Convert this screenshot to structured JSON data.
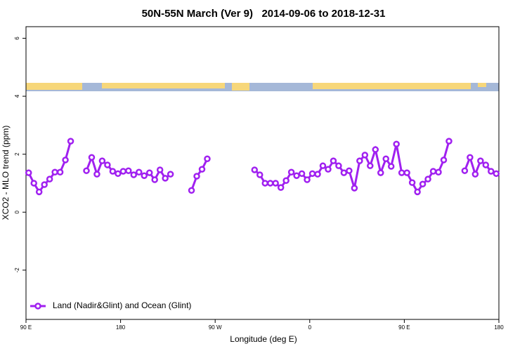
{
  "chart_data": {
    "type": "line",
    "title": "50N-55N March (Ver 9)   2014-09-06 to 2018-12-31",
    "xlabel": "Longitude (deg E)",
    "ylabel": "XCO2 - MLO trend (ppm)",
    "xlim": [
      90,
      540
    ],
    "ylim": [
      -3.7,
      6.4
    ],
    "xticks": [
      {
        "value": 90,
        "label": "90 E"
      },
      180,
      {
        "value": 270,
        "label": "90 W"
      },
      {
        "value": 360,
        "label": "0"
      },
      {
        "value": 450,
        "label": "90 E"
      },
      {
        "value": 540,
        "label": "180"
      }
    ],
    "yticks": [
      -2,
      0,
      2,
      4,
      6
    ],
    "legend": "bottomleft",
    "x": [
      92.5,
      97.5,
      102.5,
      107.5,
      112.5,
      117.5,
      122.5,
      127.5,
      132.5,
      137.5,
      147.5,
      152.5,
      157.5,
      162.5,
      167.5,
      172.5,
      177.5,
      182.5,
      187.5,
      192.5,
      197.5,
      202.5,
      207.5,
      212.5,
      217.5,
      222.5,
      227.5,
      232.5,
      247.5,
      252.5,
      257.5,
      262.5,
      267.5,
      307.5,
      312.5,
      317.5,
      322.5,
      327.5,
      332.5,
      337.5,
      342.5,
      347.5,
      352.5,
      357.5,
      362.5,
      367.5,
      372.5,
      377.5,
      382.5,
      387.5,
      392.5,
      397.5,
      402.5,
      407.5,
      412.5,
      417.5,
      422.5,
      427.5,
      432.5,
      437.5,
      442.5,
      447.5,
      452.5,
      457.5,
      462.5,
      467.5,
      472.5,
      477.5,
      482.5,
      487.5,
      492.5,
      497.5,
      507.5,
      512.5,
      517.5,
      522.5,
      527.5,
      532.5,
      537.5
    ],
    "series": [
      {
        "name": "Land (Nadir&Glint) and Ocean (Glint)",
        "color": "#a020f0",
        "values": [
          1.36,
          1.0,
          0.7,
          0.95,
          1.14,
          1.38,
          1.38,
          1.8,
          2.45,
          null,
          1.43,
          1.89,
          1.31,
          1.77,
          1.63,
          1.41,
          1.33,
          1.41,
          1.43,
          1.29,
          1.38,
          1.26,
          1.36,
          1.12,
          1.46,
          1.17,
          1.31,
          null,
          0.75,
          1.24,
          1.48,
          1.84,
          null,
          1.46,
          1.29,
          1.0,
          1.0,
          1.0,
          0.85,
          1.09,
          1.38,
          1.26,
          1.33,
          1.12,
          1.33,
          1.31,
          1.6,
          1.48,
          1.77,
          1.6,
          1.36,
          1.43,
          0.83,
          1.77,
          1.97,
          1.6,
          2.16,
          1.36,
          1.84,
          1.58,
          2.35,
          1.36,
          1.36,
          1.02,
          0.7,
          0.97,
          1.14,
          1.41,
          1.38,
          1.8,
          2.45,
          null,
          1.43,
          1.89,
          1.31,
          1.77,
          1.63,
          1.41,
          1.33
        ]
      }
    ]
  }
}
